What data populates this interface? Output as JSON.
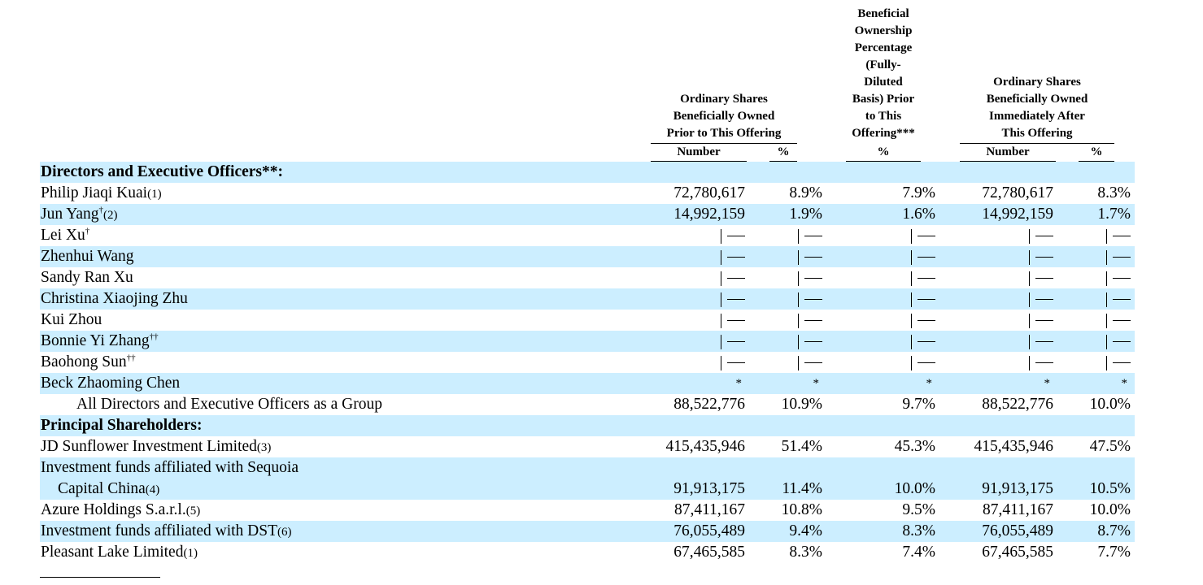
{
  "header": {
    "group1_title": [
      "Ordinary Shares",
      "Beneficially Owned",
      "Prior to This Offering"
    ],
    "group2_title": [
      "Beneficial",
      "Ownership",
      "Percentage",
      "(Fully-",
      "Diluted",
      "Basis) Prior",
      "to This",
      "Offering***"
    ],
    "group3_title": [
      "Ordinary Shares",
      "Beneficially Owned",
      "Immediately After",
      "This Offering"
    ],
    "col_number": "Number",
    "col_percent": "%"
  },
  "rows": [
    {
      "label": "Directors and Executive Officers**:",
      "style": "bold",
      "shade": true,
      "cells": [
        "",
        "",
        "",
        "",
        ""
      ]
    },
    {
      "label": "Philip Jiaqi Kuai",
      "ref": "(1)",
      "shade": false,
      "cells": [
        "72,780,617",
        "8.9%",
        "7.9%",
        "72,780,617",
        "8.3%"
      ]
    },
    {
      "label": "Jun Yang",
      "sup": "†",
      "ref": "(2)",
      "shade": true,
      "cells": [
        "14,992,159",
        "1.9%",
        "1.6%",
        "14,992,159",
        "1.7%"
      ]
    },
    {
      "label": "Lei Xu",
      "sup": "†",
      "shade": false,
      "cells": [
        "—",
        "—",
        "—",
        "—",
        "—"
      ]
    },
    {
      "label": "Zhenhui Wang",
      "shade": true,
      "cells": [
        "—",
        "—",
        "—",
        "—",
        "—"
      ]
    },
    {
      "label": "Sandy Ran Xu",
      "shade": false,
      "cells": [
        "—",
        "—",
        "—",
        "—",
        "—"
      ]
    },
    {
      "label": "Christina Xiaojing Zhu",
      "shade": true,
      "cells": [
        "—",
        "—",
        "—",
        "—",
        "—"
      ]
    },
    {
      "label": "Kui Zhou",
      "shade": false,
      "cells": [
        "—",
        "—",
        "—",
        "—",
        "—"
      ]
    },
    {
      "label": "Bonnie Yi Zhang",
      "sup": "††",
      "shade": true,
      "cells": [
        "—",
        "—",
        "—",
        "—",
        "—"
      ]
    },
    {
      "label": "Baohong Sun",
      "sup": "††",
      "shade": false,
      "cells": [
        "—",
        "—",
        "—",
        "—",
        "—"
      ]
    },
    {
      "label": "Beck Zhaoming Chen",
      "shade": true,
      "cells": [
        "*",
        "*",
        "*",
        "*",
        "*"
      ]
    },
    {
      "label": "All Directors and Executive Officers as a Group",
      "style": "indent2",
      "shade": false,
      "cells": [
        "88,522,776",
        "10.9%",
        "9.7%",
        "88,522,776",
        "10.0%"
      ]
    },
    {
      "label": "Principal Shareholders:",
      "style": "bold",
      "shade": true,
      "cells": [
        "",
        "",
        "",
        "",
        ""
      ]
    },
    {
      "label": "JD Sunflower Investment Limited",
      "ref": "(3)",
      "shade": false,
      "cells": [
        "415,435,946",
        "51.4%",
        "45.3%",
        "415,435,946",
        "47.5%"
      ]
    },
    {
      "label": "Investment funds affiliated with Sequoia",
      "shade": true,
      "cells": [
        "",
        "",
        "",
        "",
        ""
      ]
    },
    {
      "label": "Capital China",
      "ref": "(4)",
      "style": "indent1",
      "shade": true,
      "cells": [
        "91,913,175",
        "11.4%",
        "10.0%",
        "91,913,175",
        "10.5%"
      ]
    },
    {
      "label": "Azure Holdings S.a.r.l.",
      "ref": "(5)",
      "shade": false,
      "cells": [
        "87,411,167",
        "10.8%",
        "9.5%",
        "87,411,167",
        "10.0%"
      ]
    },
    {
      "label": "Investment funds affiliated with DST",
      "ref": "(6)",
      "shade": true,
      "cells": [
        "76,055,489",
        "9.4%",
        "8.3%",
        "76,055,489",
        "8.7%"
      ]
    },
    {
      "label": "Pleasant Lake Limited",
      "ref": "(1)",
      "shade": false,
      "cells": [
        "67,465,585",
        "8.3%",
        "7.4%",
        "67,465,585",
        "7.7%"
      ]
    }
  ]
}
